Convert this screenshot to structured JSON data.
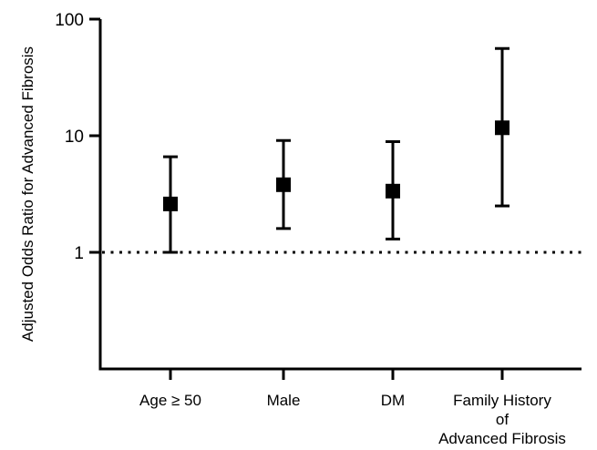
{
  "chart_data": {
    "type": "scatter",
    "subtype": "forest-plot-with-error-bars",
    "title": "",
    "xlabel": "",
    "ylabel": "Adjusted Odds Ratio for Advanced Fibrosis",
    "y_scale": "log",
    "ylim": [
      0.1,
      100
    ],
    "y_ticks": [
      1,
      10,
      100
    ],
    "y_tick_labels": [
      "1",
      "10",
      "100"
    ],
    "reference_line": {
      "value": 1,
      "style": "dotted"
    },
    "grid": false,
    "legend": "none",
    "marker": "square",
    "color": "#000000",
    "categories": [
      {
        "lines": [
          "Age ≥ 50"
        ]
      },
      {
        "lines": [
          "Male"
        ]
      },
      {
        "lines": [
          "DM"
        ]
      },
      {
        "lines": [
          "Family History",
          "of",
          "Advanced Fibrosis"
        ]
      }
    ],
    "values": [
      2.6,
      3.8,
      3.35,
      11.7
    ],
    "lower": [
      1.0,
      1.6,
      1.3,
      2.5
    ],
    "upper": [
      6.6,
      9.1,
      8.9,
      56
    ]
  }
}
